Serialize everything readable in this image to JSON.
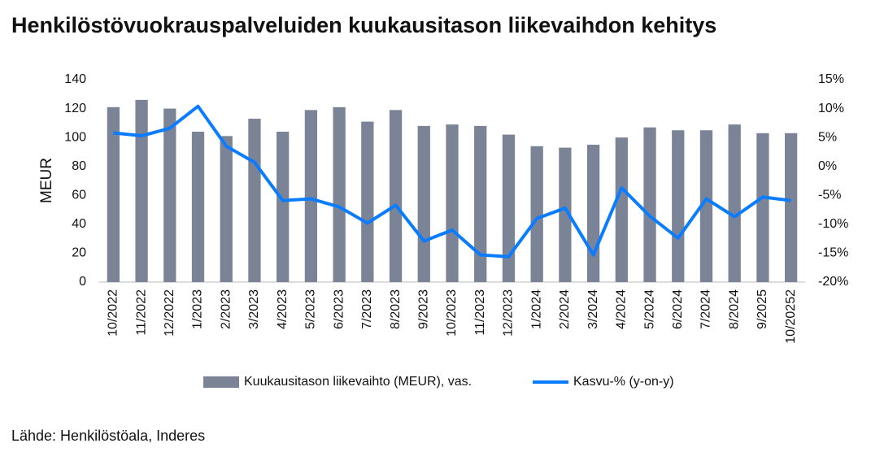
{
  "chart_data": {
    "type": "bar",
    "title": "Henkilöstövuokrauspalveluiden kuukausitason liikevaihdon kehitys",
    "ylabel": "MEUR",
    "source": "Lähde: Henkilöstöala, Inderes",
    "categories": [
      "10/2022",
      "11/2022",
      "12/2022",
      "1/2023",
      "2/2023",
      "3/2023",
      "4/2023",
      "5/2023",
      "6/2023",
      "7/2023",
      "8/2023",
      "9/2023",
      "10/2023",
      "11/2023",
      "12/2023",
      "1/2024",
      "2/2024",
      "3/2024",
      "4/2024",
      "5/2024",
      "6/2024",
      "7/2024",
      "8/2024",
      "9/2025",
      "10/20252"
    ],
    "series": [
      {
        "name": "Kuukausitason liikevaihto (MEUR), vas.",
        "type": "bar",
        "color": "#7b8397",
        "values": [
          121,
          126,
          120,
          104,
          101,
          113,
          104,
          119,
          121,
          111,
          119,
          108,
          109,
          108,
          102,
          94,
          93,
          95,
          100,
          107,
          105,
          105,
          109,
          103,
          103
        ]
      },
      {
        "name": "Kasvu-% (y-on-y)",
        "type": "line",
        "axis": "y2",
        "color": "#0a7cff",
        "values": [
          5.8,
          5.3,
          6.6,
          10.4,
          3.5,
          0.7,
          -5.9,
          -5.6,
          -7.0,
          -9.8,
          -6.7,
          -12.9,
          -11.0,
          -15.3,
          -15.6,
          -9.0,
          -7.2,
          -15.3,
          -3.7,
          -8.6,
          -12.4,
          -5.6,
          -8.7,
          -5.3,
          -5.9
        ]
      }
    ],
    "ylim": [
      0,
      140
    ],
    "yticks": [
      0,
      20,
      40,
      60,
      80,
      100,
      120,
      140
    ],
    "y2lim": [
      -20,
      15
    ],
    "y2ticks": [
      {
        "value": -20,
        "label": "-20%"
      },
      {
        "value": -15,
        "label": "-15%"
      },
      {
        "value": -10,
        "label": "-10%"
      },
      {
        "value": -5,
        "label": "-5%"
      },
      {
        "value": 0,
        "label": "0%"
      },
      {
        "value": 5,
        "label": "5%"
      },
      {
        "value": 10,
        "label": "10%"
      },
      {
        "value": 15,
        "label": "15%"
      }
    ],
    "grid": false
  }
}
